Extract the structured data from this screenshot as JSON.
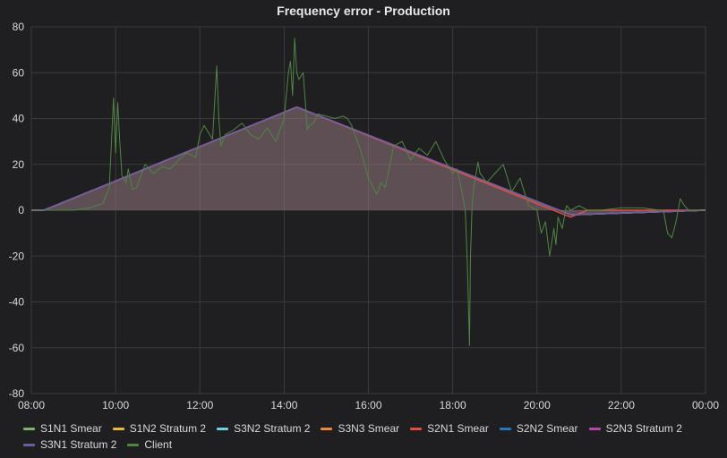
{
  "panel": {
    "title": "Frequency error - Production"
  },
  "chart_data": {
    "type": "line",
    "title": "Frequency error - Production",
    "xlabel": "",
    "ylabel": "",
    "x_ticks": [
      "08:00",
      "10:00",
      "12:00",
      "14:00",
      "16:00",
      "18:00",
      "20:00",
      "22:00",
      "00:00"
    ],
    "y_ticks": [
      80,
      60,
      40,
      20,
      0,
      -20,
      -40,
      -60,
      -80
    ],
    "xlim_hours": [
      8,
      24
    ],
    "ylim": [
      -80,
      80
    ],
    "grid": true,
    "legend_position": "bottom",
    "series": [
      {
        "name": "S1N1 Smear",
        "color": "#7eb26d",
        "x": [
          8,
          8.3,
          14.3,
          20.8,
          24
        ],
        "y": [
          0,
          0,
          45,
          -2,
          0
        ]
      },
      {
        "name": "S1N2 Stratum 2",
        "color": "#eab839",
        "x": [
          8,
          8.3,
          14.3,
          20.8,
          24
        ],
        "y": [
          0,
          0,
          45,
          -2,
          0
        ]
      },
      {
        "name": "S3N2 Stratum 2",
        "color": "#6ed0e0",
        "x": [
          8,
          8.3,
          14.3,
          20.8,
          24
        ],
        "y": [
          0,
          0,
          45,
          -2,
          0
        ]
      },
      {
        "name": "S3N3 Smear",
        "color": "#ef843c",
        "x": [
          8,
          8.3,
          14.3,
          20.8,
          24
        ],
        "y": [
          0,
          0,
          45,
          -2,
          0
        ]
      },
      {
        "name": "S2N1 Smear",
        "color": "#e24d42",
        "x": [
          8,
          8.3,
          14.3,
          20.8,
          21.2,
          24
        ],
        "y": [
          0,
          0,
          45,
          -3,
          0,
          0
        ]
      },
      {
        "name": "S2N2 Smear",
        "color": "#1f78c1",
        "x": [
          8,
          8.3,
          14.3,
          20.8,
          24
        ],
        "y": [
          0,
          0,
          45,
          -2,
          0
        ]
      },
      {
        "name": "S2N3 Stratum 2",
        "color": "#ba43a9",
        "x": [
          8,
          8.3,
          14.3,
          20.8,
          24
        ],
        "y": [
          0,
          0,
          45,
          -2,
          0
        ]
      },
      {
        "name": "S3N1 Stratum 2",
        "color": "#705da0",
        "x": [
          8,
          8.3,
          14.3,
          20.8,
          24
        ],
        "y": [
          0,
          0,
          45,
          -2,
          0
        ]
      },
      {
        "name": "Client",
        "color": "#508642",
        "x": [
          8,
          8.5,
          9,
          9.4,
          9.7,
          9.85,
          9.95,
          10.0,
          10.05,
          10.1,
          10.15,
          10.25,
          10.3,
          10.4,
          10.5,
          10.7,
          10.9,
          11.1,
          11.3,
          11.5,
          11.7,
          11.9,
          12.0,
          12.1,
          12.2,
          12.3,
          12.4,
          12.45,
          12.5,
          12.6,
          12.8,
          13.0,
          13.2,
          13.4,
          13.6,
          13.8,
          14.0,
          14.1,
          14.15,
          14.2,
          14.25,
          14.3,
          14.35,
          14.45,
          14.55,
          14.6,
          14.7,
          14.8,
          15.0,
          15.2,
          15.4,
          15.5,
          15.6,
          15.8,
          16.0,
          16.2,
          16.3,
          16.4,
          16.6,
          16.8,
          17.0,
          17.2,
          17.4,
          17.6,
          17.8,
          18.0,
          18.1,
          18.2,
          18.3,
          18.35,
          18.4,
          18.42,
          18.44,
          18.46,
          18.5,
          18.6,
          18.65,
          18.7,
          18.8,
          19.0,
          19.2,
          19.4,
          19.6,
          19.8,
          20.0,
          20.1,
          20.2,
          20.3,
          20.4,
          20.45,
          20.5,
          20.6,
          20.7,
          20.8,
          21.0,
          21.2,
          21.5,
          22.0,
          22.5,
          22.9,
          23.0,
          23.1,
          23.2,
          23.3,
          23.4,
          23.5,
          23.6,
          23.7,
          23.9,
          24
        ],
        "y": [
          0,
          0,
          0,
          1,
          3,
          10,
          49,
          25,
          47,
          30,
          15,
          12,
          18,
          9,
          10,
          20,
          16,
          19,
          18,
          22,
          25,
          23,
          33,
          37,
          34,
          31,
          63,
          40,
          28,
          33,
          35,
          38,
          33,
          31,
          36,
          30,
          40,
          60,
          65,
          50,
          75,
          60,
          57,
          60,
          35,
          37,
          38,
          42,
          41,
          40,
          41,
          40,
          37,
          27,
          14,
          7,
          12,
          10,
          28,
          30,
          22,
          27,
          24,
          30,
          22,
          16,
          18,
          10,
          0,
          -25,
          -59,
          -22,
          -10,
          2,
          10,
          21,
          16,
          15,
          12,
          16,
          20,
          8,
          14,
          2,
          0,
          -10,
          -5,
          -20,
          -8,
          -15,
          -3,
          -8,
          2,
          0,
          2,
          0,
          0,
          1,
          1,
          0,
          0,
          -10,
          -12,
          -5,
          5,
          2,
          0,
          0,
          0,
          0
        ]
      }
    ]
  }
}
